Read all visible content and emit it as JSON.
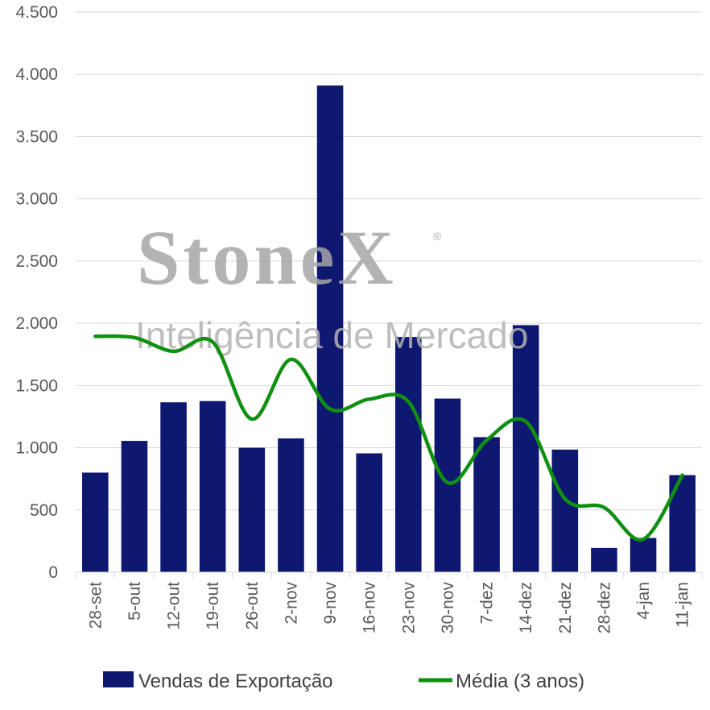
{
  "chart_data": {
    "type": "bar",
    "categories": [
      "28-set",
      "5-out",
      "12-out",
      "19-out",
      "26-out",
      "2-nov",
      "9-nov",
      "16-nov",
      "23-nov",
      "30-nov",
      "7-dez",
      "14-dez",
      "21-dez",
      "28-dez",
      "4-jan",
      "11-jan"
    ],
    "series": [
      {
        "name": "Vendas de Exportação",
        "type": "bar",
        "color": "#0f1870",
        "values": [
          800,
          1055,
          1365,
          1375,
          1000,
          1075,
          3910,
          955,
          1890,
          1395,
          1085,
          1985,
          985,
          195,
          275,
          780
        ]
      },
      {
        "name": "Média (3 anos)",
        "type": "line",
        "color": "#109010",
        "values": [
          1895,
          1885,
          1775,
          1850,
          1230,
          1710,
          1310,
          1390,
          1370,
          720,
          1060,
          1210,
          590,
          520,
          265,
          780
        ]
      }
    ],
    "ylim": [
      0,
      4500
    ],
    "yticks": [
      0,
      500,
      1000,
      1500,
      2000,
      2500,
      3000,
      3500,
      4000,
      4500
    ],
    "ytick_labels": [
      "0",
      "500",
      "1.000",
      "1.500",
      "2.000",
      "2.500",
      "3.000",
      "3.500",
      "4.000",
      "4.500"
    ],
    "grid": true,
    "legend_position": "bottom"
  },
  "watermark": {
    "brand": "StoneX",
    "registered": "®",
    "tagline": "Inteligência de Mercado"
  }
}
